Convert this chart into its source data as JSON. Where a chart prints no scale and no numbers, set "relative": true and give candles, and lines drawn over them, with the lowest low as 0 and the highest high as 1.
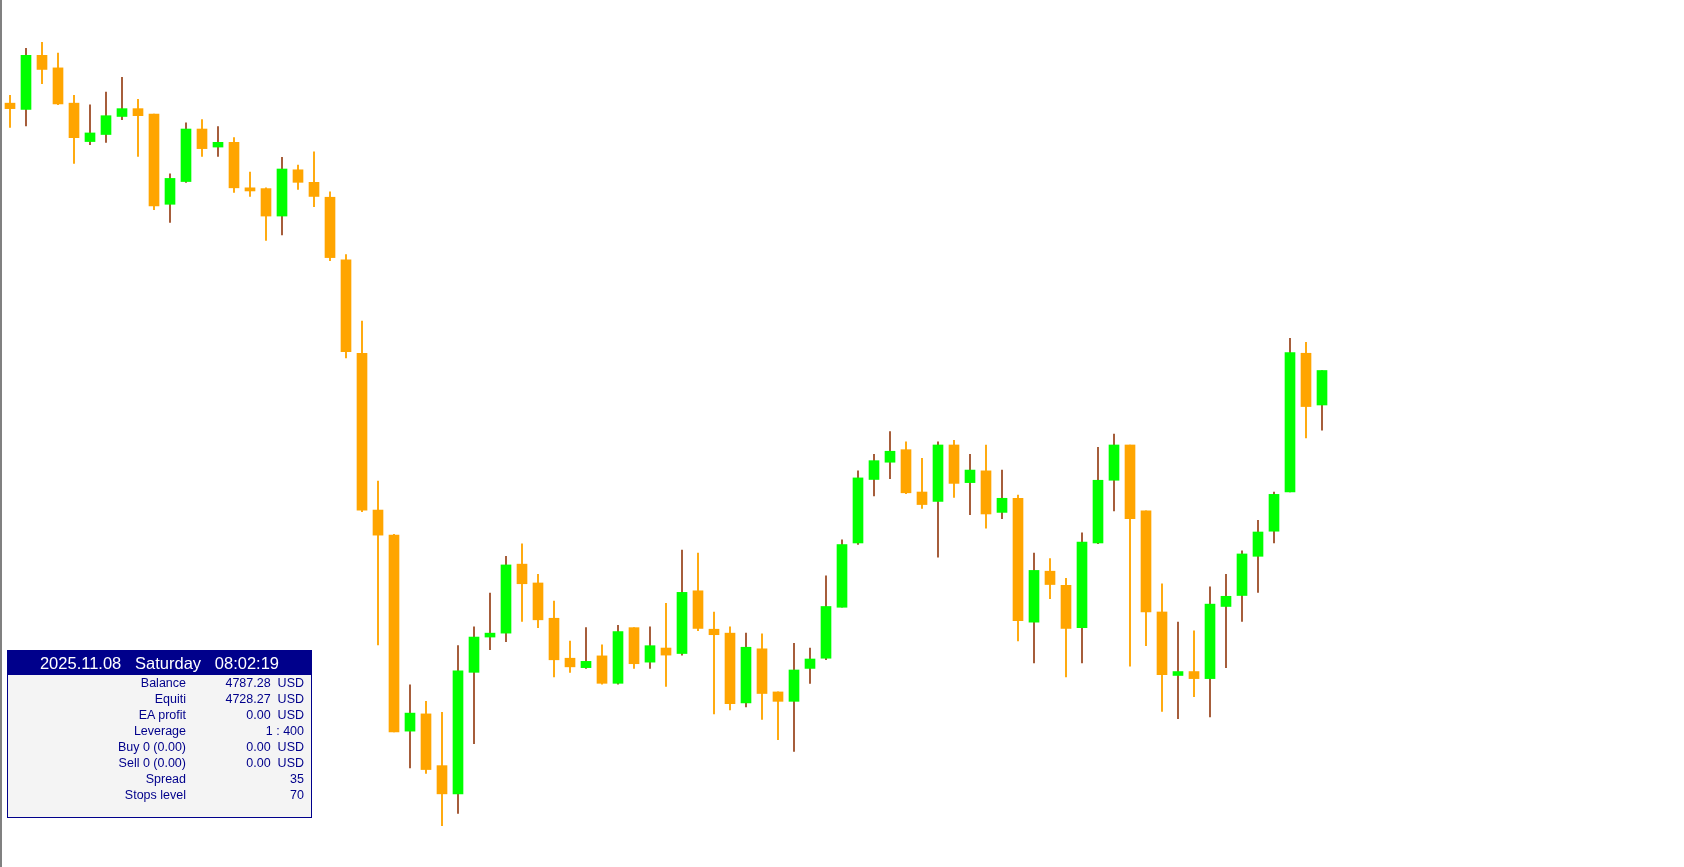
{
  "chart_data": [
    {
      "type": "candlestick",
      "relative": true,
      "categories": [
        null,
        null,
        null,
        null,
        null,
        null,
        null,
        null,
        null,
        null,
        null,
        null,
        null,
        null,
        null,
        null,
        null,
        null,
        null,
        null,
        null,
        null,
        null,
        null,
        null,
        null,
        null,
        null,
        null,
        null,
        null,
        null,
        null,
        null,
        null,
        null,
        null,
        null,
        null,
        null,
        null,
        null,
        null,
        null,
        null,
        null,
        null,
        null,
        null,
        null,
        null,
        null,
        null,
        null,
        null,
        null,
        null,
        null,
        null,
        null,
        null,
        null,
        null,
        null,
        null,
        null,
        null,
        null,
        null,
        null,
        null,
        null,
        null,
        null,
        null,
        null,
        null,
        null,
        null,
        null,
        null,
        null,
        null
      ],
      "ohlc": [
        [
          0.922,
          0.932,
          0.891,
          0.915
        ],
        [
          0.914,
          0.992,
          0.893,
          0.983
        ],
        [
          0.983,
          1.0,
          0.947,
          0.965
        ],
        [
          0.967,
          0.986,
          0.92,
          0.921
        ],
        [
          0.922,
          0.932,
          0.845,
          0.878
        ],
        [
          0.873,
          0.92,
          0.869,
          0.884
        ],
        [
          0.882,
          0.936,
          0.872,
          0.906
        ],
        [
          0.905,
          0.955,
          0.901,
          0.915
        ],
        [
          0.915,
          0.927,
          0.854,
          0.906
        ],
        [
          0.908,
          0.908,
          0.786,
          0.791
        ],
        [
          0.793,
          0.832,
          0.77,
          0.826
        ],
        [
          0.822,
          0.897,
          0.821,
          0.889
        ],
        [
          0.889,
          0.901,
          0.854,
          0.864
        ],
        [
          0.866,
          0.892,
          0.854,
          0.872
        ],
        [
          0.872,
          0.878,
          0.808,
          0.814
        ],
        [
          0.814,
          0.834,
          0.803,
          0.81
        ],
        [
          0.813,
          0.814,
          0.747,
          0.778
        ],
        [
          0.778,
          0.853,
          0.754,
          0.838
        ],
        [
          0.837,
          0.843,
          0.812,
          0.821
        ],
        [
          0.821,
          0.86,
          0.79,
          0.803
        ],
        [
          0.802,
          0.809,
          0.721,
          0.725
        ],
        [
          0.722,
          0.729,
          0.597,
          0.605
        ],
        [
          0.603,
          0.644,
          0.401,
          0.403
        ],
        [
          0.403,
          0.44,
          0.231,
          0.371
        ],
        [
          0.371,
          0.372,
          0.12,
          0.12
        ],
        [
          0.121,
          0.18,
          0.074,
          0.144
        ],
        [
          0.143,
          0.159,
          0.067,
          0.072
        ],
        [
          0.077,
          0.145,
          0.0,
          0.041
        ],
        [
          0.041,
          0.23,
          0.016,
          0.198
        ],
        [
          0.196,
          0.254,
          0.105,
          0.241
        ],
        [
          0.241,
          0.297,
          0.225,
          0.246
        ],
        [
          0.246,
          0.344,
          0.235,
          0.333
        ],
        [
          0.334,
          0.36,
          0.261,
          0.309
        ],
        [
          0.31,
          0.321,
          0.253,
          0.263
        ],
        [
          0.265,
          0.287,
          0.19,
          0.212
        ],
        [
          0.214,
          0.236,
          0.196,
          0.203
        ],
        [
          0.202,
          0.253,
          0.201,
          0.21
        ],
        [
          0.217,
          0.231,
          0.181,
          0.182
        ],
        [
          0.182,
          0.256,
          0.181,
          0.248
        ],
        [
          0.253,
          0.253,
          0.201,
          0.207
        ],
        [
          0.209,
          0.254,
          0.201,
          0.23
        ],
        [
          0.227,
          0.284,
          0.178,
          0.218
        ],
        [
          0.22,
          0.352,
          0.218,
          0.298
        ],
        [
          0.3,
          0.348,
          0.249,
          0.252
        ],
        [
          0.251,
          0.273,
          0.143,
          0.244
        ],
        [
          0.246,
          0.254,
          0.148,
          0.156
        ],
        [
          0.157,
          0.246,
          0.152,
          0.228
        ],
        [
          0.226,
          0.245,
          0.136,
          0.169
        ],
        [
          0.171,
          0.171,
          0.11,
          0.159
        ],
        [
          0.159,
          0.233,
          0.095,
          0.199
        ],
        [
          0.201,
          0.227,
          0.182,
          0.213
        ],
        [
          0.214,
          0.319,
          0.212,
          0.28
        ],
        [
          0.279,
          0.365,
          0.279,
          0.359
        ],
        [
          0.361,
          0.453,
          0.359,
          0.444
        ],
        [
          0.442,
          0.474,
          0.421,
          0.466
        ],
        [
          0.464,
          0.503,
          0.443,
          0.478
        ],
        [
          0.48,
          0.49,
          0.424,
          0.425
        ],
        [
          0.426,
          0.469,
          0.405,
          0.41
        ],
        [
          0.414,
          0.49,
          0.343,
          0.486
        ],
        [
          0.486,
          0.492,
          0.419,
          0.437
        ],
        [
          0.438,
          0.474,
          0.397,
          0.454
        ],
        [
          0.453,
          0.486,
          0.38,
          0.398
        ],
        [
          0.4,
          0.454,
          0.392,
          0.418
        ],
        [
          0.418,
          0.422,
          0.236,
          0.262
        ],
        [
          0.26,
          0.348,
          0.208,
          0.326
        ],
        [
          0.325,
          0.341,
          0.29,
          0.308
        ],
        [
          0.307,
          0.316,
          0.19,
          0.252
        ],
        [
          0.253,
          0.374,
          0.208,
          0.362
        ],
        [
          0.361,
          0.483,
          0.36,
          0.441
        ],
        [
          0.441,
          0.5,
          0.402,
          0.486
        ],
        [
          0.486,
          0.486,
          0.204,
          0.392
        ],
        [
          0.402,
          0.402,
          0.23,
          0.273
        ],
        [
          0.273,
          0.309,
          0.146,
          0.193
        ],
        [
          0.192,
          0.26,
          0.137,
          0.197
        ],
        [
          0.197,
          0.249,
          0.165,
          0.188
        ],
        [
          0.188,
          0.305,
          0.139,
          0.283
        ],
        [
          0.28,
          0.321,
          0.202,
          0.293
        ],
        [
          0.294,
          0.351,
          0.261,
          0.347
        ],
        [
          0.344,
          0.39,
          0.298,
          0.375
        ],
        [
          0.376,
          0.426,
          0.361,
          0.423
        ],
        [
          0.426,
          0.622,
          0.426,
          0.604
        ],
        [
          0.603,
          0.617,
          0.495,
          0.535
        ],
        [
          0.537,
          0.581,
          0.505,
          0.581
        ]
      ],
      "colors": [
        "#ffa500",
        "#00ff00",
        "#ffa500",
        "#ffa500",
        "#ffa500",
        "#00ff00",
        "#00ff00",
        "#00ff00",
        "#ffa500",
        "#ffa500",
        "#00ff00",
        "#00ff00",
        "#ffa500",
        "#00ff00",
        "#ffa500",
        "#ffa500",
        "#ffa500",
        "#00ff00",
        "#ffa500",
        "#ffa500",
        "#ffa500",
        "#ffa500",
        "#ffa500",
        "#ffa500",
        "#ffa500",
        "#00ff00",
        "#ffa500",
        "#ffa500",
        "#00ff00",
        "#00ff00",
        "#00ff00",
        "#00ff00",
        "#ffa500",
        "#ffa500",
        "#ffa500",
        "#ffa500",
        "#00ff00",
        "#ffa500",
        "#00ff00",
        "#ffa500",
        "#00ff00",
        "#ffa500",
        "#00ff00",
        "#ffa500",
        "#ffa500",
        "#ffa500",
        "#00ff00",
        "#ffa500",
        "#ffa500",
        "#00ff00",
        "#00ff00",
        "#00ff00",
        "#00ff00",
        "#00ff00",
        "#00ff00",
        "#00ff00",
        "#ffa500",
        "#ffa500",
        "#00ff00",
        "#ffa500",
        "#00ff00",
        "#ffa500",
        "#00ff00",
        "#ffa500",
        "#00ff00",
        "#ffa500",
        "#ffa500",
        "#00ff00",
        "#00ff00",
        "#00ff00",
        "#ffa500",
        "#ffa500",
        "#ffa500",
        "#00ff00",
        "#ffa500",
        "#00ff00",
        "#00ff00",
        "#00ff00",
        "#00ff00",
        "#00ff00",
        "#00ff00",
        "#ffa500",
        "#00ff00"
      ]
    },
    {
      "type": "other",
      "title": "2025.11.08   Saturday   08:02:19",
      "categories": [
        "Balance",
        "Equiti",
        "EA profit",
        "Leverage",
        "Buy 0 (0.00)",
        "Sell 0 (0.00)",
        "Spread",
        "Stops level"
      ],
      "value_labels": [
        "4787.28  USD",
        "4728.27  USD",
        "0.00  USD",
        "1 : 400",
        "0.00  USD",
        "0.00  USD",
        "35",
        "70"
      ]
    }
  ]
}
